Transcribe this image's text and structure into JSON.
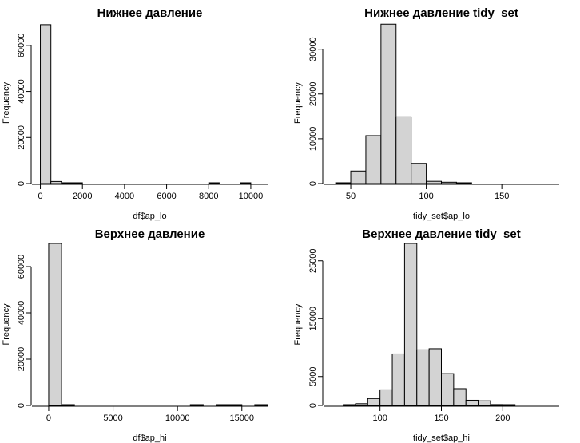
{
  "chart_data": [
    {
      "type": "histogram",
      "title": "Нижнее давление",
      "xlabel": "df$ap_lo",
      "ylabel": "Frequency",
      "colors": {
        "bar_fill": "#d3d3d3",
        "bar_stroke": "#000000"
      },
      "xlim": [
        -400,
        10800
      ],
      "ylim": [
        0,
        70000
      ],
      "x_ticks": [
        0,
        2000,
        4000,
        6000,
        8000,
        10000
      ],
      "x_tick_labels": [
        "0",
        "2000",
        "4000",
        "6000",
        "8000",
        "10000"
      ],
      "y_ticks": [
        0,
        20000,
        40000,
        60000
      ],
      "y_tick_labels": [
        "0",
        "20000",
        "40000",
        "60000"
      ],
      "bins": [
        {
          "x0": 0,
          "x1": 500,
          "count": 69000
        },
        {
          "x0": 500,
          "x1": 1000,
          "count": 900
        },
        {
          "x0": 1000,
          "x1": 1500,
          "count": 50
        },
        {
          "x0": 1500,
          "x1": 2000,
          "count": 10
        },
        {
          "x0": 8000,
          "x1": 8500,
          "count": 30
        },
        {
          "x0": 9500,
          "x1": 10000,
          "count": 20
        }
      ]
    },
    {
      "type": "histogram",
      "title": "Нижнее давление tidy_set",
      "xlabel": "tidy_set$ap_lo",
      "ylabel": "Frequency",
      "colors": {
        "bar_fill": "#d3d3d3",
        "bar_stroke": "#000000"
      },
      "xlim": [
        32,
        188
      ],
      "ylim": [
        0,
        36000
      ],
      "x_ticks": [
        50,
        100,
        150
      ],
      "x_tick_labels": [
        "50",
        "100",
        "150"
      ],
      "y_ticks": [
        0,
        10000,
        20000,
        30000
      ],
      "y_tick_labels": [
        "0",
        "10000",
        "20000",
        "30000"
      ],
      "bins": [
        {
          "x0": 40,
          "x1": 50,
          "count": 60
        },
        {
          "x0": 50,
          "x1": 60,
          "count": 2800
        },
        {
          "x0": 60,
          "x1": 70,
          "count": 10700
        },
        {
          "x0": 70,
          "x1": 80,
          "count": 35600
        },
        {
          "x0": 80,
          "x1": 90,
          "count": 14900
        },
        {
          "x0": 90,
          "x1": 100,
          "count": 4500
        },
        {
          "x0": 100,
          "x1": 110,
          "count": 500
        },
        {
          "x0": 110,
          "x1": 120,
          "count": 300
        },
        {
          "x0": 120,
          "x1": 130,
          "count": 20
        }
      ]
    },
    {
      "type": "histogram",
      "title": "Верхнее давление",
      "xlabel": "df$ap_hi",
      "ylabel": "Frequency",
      "colors": {
        "bar_fill": "#d3d3d3",
        "bar_stroke": "#000000"
      },
      "xlim": [
        -1300,
        17000
      ],
      "ylim": [
        0,
        70000
      ],
      "x_ticks": [
        0,
        5000,
        10000,
        15000
      ],
      "x_tick_labels": [
        "0",
        "5000",
        "10000",
        "15000"
      ],
      "y_ticks": [
        0,
        20000,
        40000,
        60000
      ],
      "y_tick_labels": [
        "0",
        "20000",
        "40000",
        "60000"
      ],
      "bins": [
        {
          "x0": 0,
          "x1": 1000,
          "count": 70000
        },
        {
          "x0": 1000,
          "x1": 2000,
          "count": 10
        },
        {
          "x0": 11000,
          "x1": 12000,
          "count": 10
        },
        {
          "x0": 13000,
          "x1": 14000,
          "count": 10
        },
        {
          "x0": 14000,
          "x1": 15000,
          "count": 10
        },
        {
          "x0": 16000,
          "x1": 17000,
          "count": 10
        }
      ]
    },
    {
      "type": "histogram",
      "title": "Верхнее давление tidy_set",
      "xlabel": "tidy_set$ap_hi",
      "ylabel": "Frequency",
      "colors": {
        "bar_fill": "#d3d3d3",
        "bar_stroke": "#000000"
      },
      "xlim": [
        54,
        246
      ],
      "ylim": [
        0,
        28000
      ],
      "x_ticks": [
        100,
        150,
        200
      ],
      "x_tick_labels": [
        "100",
        "150",
        "200"
      ],
      "y_ticks": [
        0,
        5000,
        15000,
        25000
      ],
      "y_tick_labels": [
        "0",
        "5000",
        "15000",
        "25000"
      ],
      "bins": [
        {
          "x0": 70,
          "x1": 80,
          "count": 50
        },
        {
          "x0": 80,
          "x1": 90,
          "count": 300
        },
        {
          "x0": 90,
          "x1": 100,
          "count": 1200
        },
        {
          "x0": 100,
          "x1": 110,
          "count": 2700
        },
        {
          "x0": 110,
          "x1": 120,
          "count": 8900
        },
        {
          "x0": 120,
          "x1": 130,
          "count": 28000
        },
        {
          "x0": 130,
          "x1": 140,
          "count": 9600
        },
        {
          "x0": 140,
          "x1": 150,
          "count": 9800
        },
        {
          "x0": 150,
          "x1": 160,
          "count": 5500
        },
        {
          "x0": 160,
          "x1": 170,
          "count": 2900
        },
        {
          "x0": 170,
          "x1": 180,
          "count": 900
        },
        {
          "x0": 180,
          "x1": 190,
          "count": 800
        },
        {
          "x0": 190,
          "x1": 200,
          "count": 150
        },
        {
          "x0": 200,
          "x1": 210,
          "count": 100
        }
      ]
    }
  ]
}
